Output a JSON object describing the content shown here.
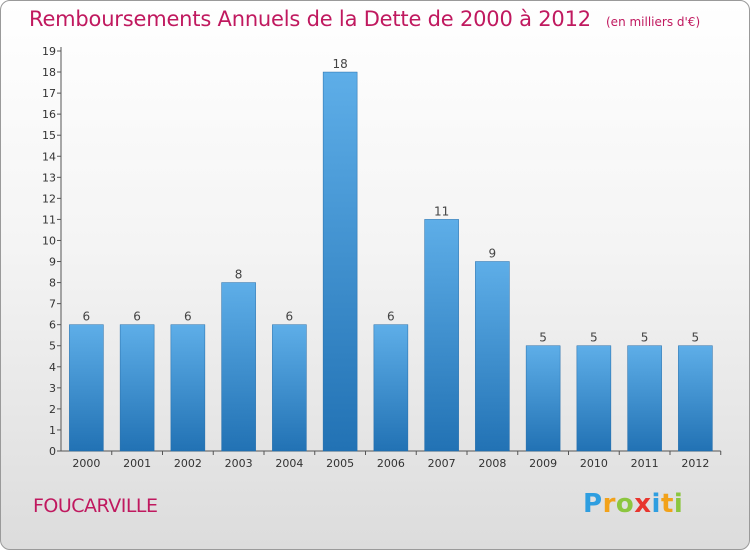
{
  "chart_data": {
    "type": "bar",
    "title": "Remboursements Annuels de la Dette de 2000 à 2012",
    "unit_note": "(en milliers d'€)",
    "categories": [
      "2000",
      "2001",
      "2002",
      "2003",
      "2004",
      "2005",
      "2006",
      "2007",
      "2008",
      "2009",
      "2010",
      "2011",
      "2012"
    ],
    "values": [
      6,
      6,
      6,
      8,
      6,
      18,
      6,
      11,
      9,
      5,
      5,
      5,
      5
    ],
    "ylim": [
      0,
      19
    ],
    "yticks": [
      0,
      1,
      2,
      3,
      4,
      5,
      6,
      7,
      8,
      9,
      10,
      11,
      12,
      13,
      14,
      15,
      16,
      17,
      18,
      19
    ],
    "grid": false,
    "bar_color": "#3d94d8",
    "bar_color_top": "#5eaee8",
    "bar_color_bottom": "#2272b4"
  },
  "footer": {
    "city": "FOUCARVILLE",
    "brand_letters": [
      {
        "ch": "P",
        "color": "#2e9ee0"
      },
      {
        "ch": "r",
        "color": "#f2a21a"
      },
      {
        "ch": "o",
        "color": "#8cc63f"
      },
      {
        "ch": "x",
        "color": "#e8352e"
      },
      {
        "ch": "i",
        "color": "#2e9ee0"
      },
      {
        "ch": "t",
        "color": "#f2a21a"
      },
      {
        "ch": "i",
        "color": "#8cc63f"
      }
    ]
  },
  "colors": {
    "title": "#c0195f",
    "axis": "#555555"
  }
}
